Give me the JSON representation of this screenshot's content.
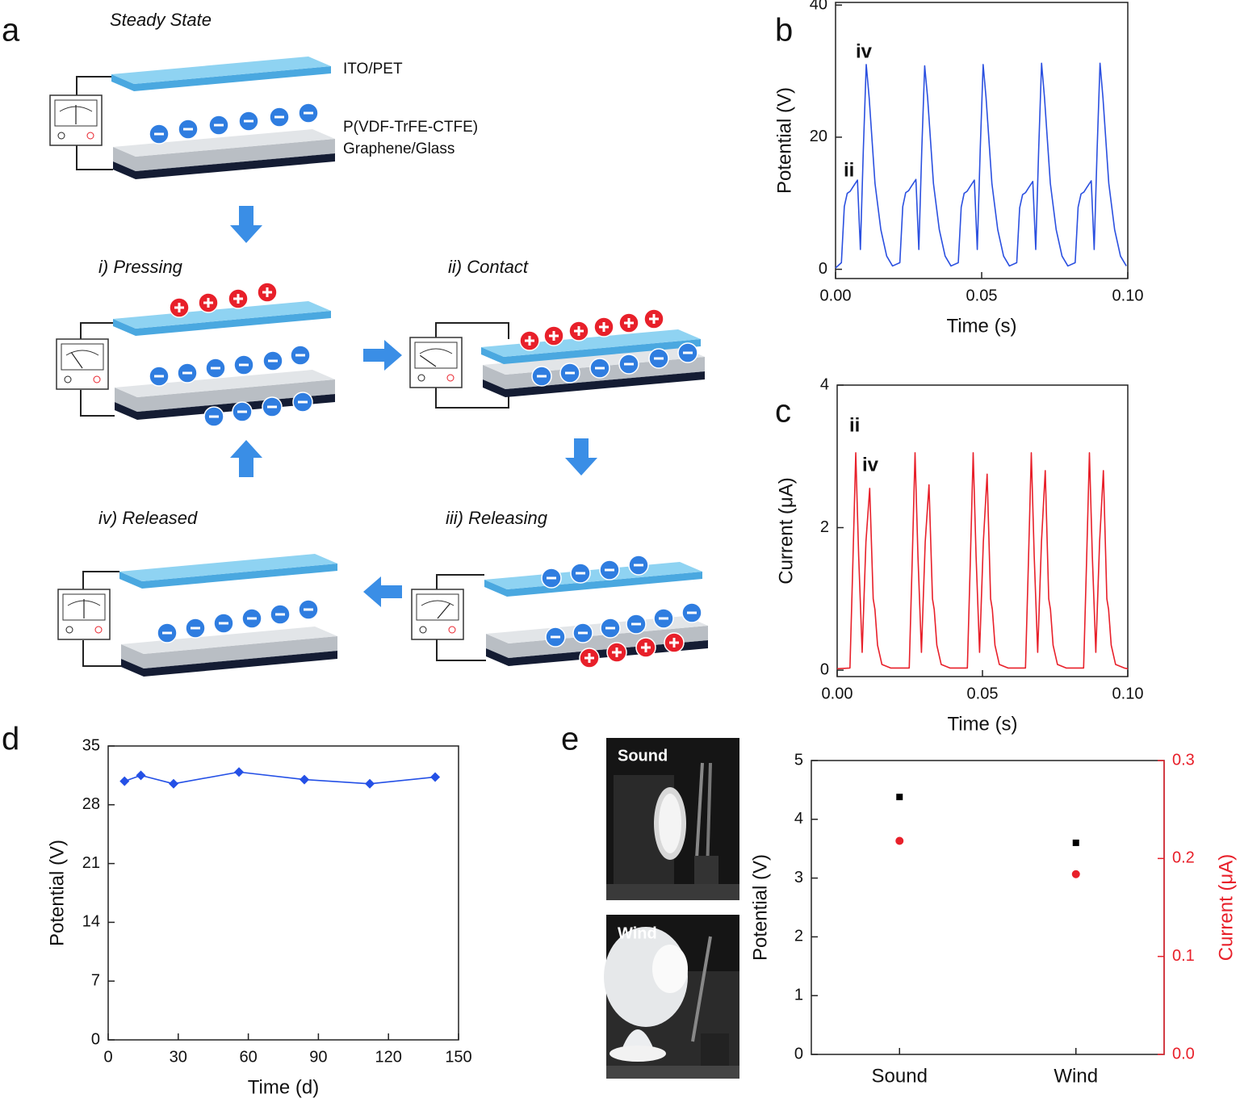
{
  "panel_labels": [
    "a",
    "b",
    "c",
    "d",
    "e"
  ],
  "diagram": {
    "states": [
      {
        "title": "Steady State"
      },
      {
        "title": "i) Pressing"
      },
      {
        "title": "ii) Contact"
      },
      {
        "title": "iii) Releasing"
      },
      {
        "title": "iv) Released"
      }
    ],
    "layers": [
      "ITO/PET",
      "P(VDF-TrFE-CTFE)",
      "Graphene/Glass"
    ]
  },
  "photos": [
    {
      "label": "Sound"
    },
    {
      "label": "Wind"
    }
  ],
  "chart_data": [
    {
      "type": "line",
      "xlabel": "Time (s)",
      "ylabel": "Potential (V)",
      "annotations": [
        "iv",
        "ii"
      ],
      "xlim": [
        0,
        0.1
      ],
      "ylim": [
        -1.4,
        40.4
      ],
      "xticks": [
        {
          "value": 0,
          "label": "0.00"
        },
        {
          "value": 0.05,
          "label": "0.05"
        },
        {
          "value": 0.1,
          "label": "0.10"
        }
      ],
      "yticks": [
        0,
        20,
        40
      ],
      "x": [
        0,
        0.001,
        0.002,
        0.003,
        0.004,
        0.005,
        0.006,
        0.0075,
        0.0085,
        0.0095,
        0.0105,
        0.0115,
        0.0135,
        0.0155,
        0.0175,
        0.0195,
        0.022,
        0.023,
        0.024,
        0.025,
        0.026,
        0.0275,
        0.0285,
        0.0295,
        0.0305,
        0.0315,
        0.0335,
        0.0355,
        0.0375,
        0.0395,
        0.042,
        0.043,
        0.044,
        0.045,
        0.046,
        0.0475,
        0.0485,
        0.0495,
        0.0505,
        0.0515,
        0.0535,
        0.0555,
        0.0575,
        0.0595,
        0.062,
        0.063,
        0.064,
        0.065,
        0.066,
        0.0675,
        0.0685,
        0.0695,
        0.0705,
        0.0715,
        0.0735,
        0.0755,
        0.0775,
        0.0795,
        0.082,
        0.083,
        0.084,
        0.085,
        0.086,
        0.0875,
        0.0885,
        0.0895,
        0.0905,
        0.0915,
        0.0935,
        0.0955,
        0.0975,
        0.0995
      ],
      "series": [
        {
          "color": "#2b50e0",
          "values": [
            0.2,
            0.6,
            1,
            9.5,
            11.5,
            11.8,
            12.5,
            13.5,
            3,
            18,
            31,
            26,
            13,
            6,
            2,
            0.5,
            1,
            9.5,
            11.6,
            11.9,
            12.6,
            13.6,
            3,
            18,
            30.8,
            26,
            13,
            6,
            2,
            0.5,
            1,
            9.4,
            11.5,
            11.8,
            12.5,
            13.5,
            3,
            18,
            31,
            26,
            13,
            6,
            2,
            0.5,
            1,
            9.3,
            11.3,
            11.6,
            12.3,
            13.3,
            3,
            18,
            31.2,
            26,
            13,
            6,
            2,
            0.5,
            1,
            9.4,
            11.4,
            11.7,
            12.4,
            13.4,
            3,
            18,
            31.2,
            26,
            13,
            6,
            2,
            0.5
          ]
        }
      ]
    },
    {
      "type": "line",
      "xlabel": "Time (s)",
      "ylabel": "Current (μA)",
      "annotations": [
        "ii",
        "iv"
      ],
      "xlim": [
        0,
        0.1
      ],
      "ylim": [
        -0.09,
        4
      ],
      "xticks": [
        {
          "value": 0,
          "label": "0.00"
        },
        {
          "value": 0.05,
          "label": "0.05"
        },
        {
          "value": 0.1,
          "label": "0.10"
        }
      ],
      "yticks": [
        0,
        2,
        4
      ],
      "x": [
        0,
        0.0044,
        0.0054,
        0.0064,
        0.0074,
        0.0086,
        0.0099,
        0.0112,
        0.0124,
        0.013,
        0.0139,
        0.0154,
        0.0184,
        0.0248,
        0.0258,
        0.0268,
        0.0278,
        0.029,
        0.0303,
        0.0316,
        0.0328,
        0.0334,
        0.0343,
        0.0358,
        0.0388,
        0.0448,
        0.0458,
        0.0468,
        0.0478,
        0.049,
        0.0503,
        0.0516,
        0.0528,
        0.0534,
        0.0543,
        0.0558,
        0.0588,
        0.0648,
        0.0658,
        0.0668,
        0.0678,
        0.069,
        0.0703,
        0.0716,
        0.0728,
        0.0734,
        0.0743,
        0.0758,
        0.0788,
        0.0848,
        0.0858,
        0.0868,
        0.0878,
        0.089,
        0.0903,
        0.0916,
        0.0928,
        0.0934,
        0.0943,
        0.0958,
        0.0988,
        0.1
      ],
      "series": [
        {
          "color": "#e8202a",
          "values": [
            0.02,
            0.03,
            1.5,
            3.05,
            1.6,
            0.25,
            1.8,
            2.55,
            1.0,
            0.85,
            0.35,
            0.08,
            0.03,
            0.03,
            1.5,
            3.05,
            1.6,
            0.25,
            1.8,
            2.6,
            1.0,
            0.85,
            0.35,
            0.08,
            0.03,
            0.03,
            1.5,
            3.05,
            1.6,
            0.25,
            1.8,
            2.75,
            1.0,
            0.85,
            0.35,
            0.08,
            0.03,
            0.03,
            1.5,
            3.05,
            1.6,
            0.25,
            1.8,
            2.8,
            1.0,
            0.85,
            0.35,
            0.08,
            0.03,
            0.03,
            1.5,
            3.05,
            1.6,
            0.25,
            1.8,
            2.8,
            1.0,
            0.85,
            0.35,
            0.08,
            0.03,
            0.02
          ]
        }
      ]
    },
    {
      "type": "line",
      "xlabel": "Time (d)",
      "ylabel": "Potential (V)",
      "marker": "diamond",
      "xlim": [
        0,
        150
      ],
      "ylim": [
        0,
        35
      ],
      "xticks": [
        0,
        30,
        60,
        90,
        120,
        150
      ],
      "yticks": [
        0,
        7,
        14,
        21,
        28,
        35
      ],
      "x": [
        7,
        14,
        28,
        56,
        84,
        112,
        140
      ],
      "series": [
        {
          "color": "#2450e6",
          "values": [
            30.8,
            31.5,
            30.5,
            31.9,
            31,
            30.5,
            31.3
          ]
        }
      ]
    },
    {
      "type": "scatter",
      "ylabel": "Potential (V)",
      "y2label": "Current (μA)",
      "categories": [
        "Sound",
        "Wind"
      ],
      "ylim": [
        0,
        5
      ],
      "yticks": [
        0,
        1,
        2,
        3,
        4,
        5
      ],
      "y2lim": [
        0,
        0.3
      ],
      "y2ticks": [
        {
          "value": 0,
          "label": "0.0"
        },
        0.1,
        0.2,
        0.3
      ],
      "series": [
        {
          "color": "#000000",
          "marker": "square",
          "values": [
            4.38,
            3.6
          ]
        },
        {
          "color": "#e8202a",
          "marker": "circle",
          "axis": "y2",
          "values": [
            0.218,
            0.184
          ]
        }
      ]
    }
  ]
}
